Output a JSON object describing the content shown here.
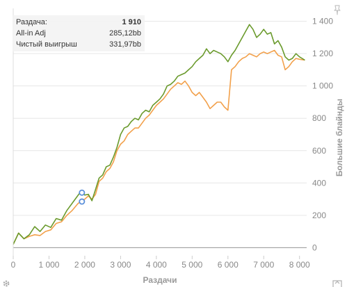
{
  "chart_data": {
    "type": "line",
    "xlabel": "Раздачи",
    "ylabel": "Большие блайнды",
    "xlim": [
      0,
      8200
    ],
    "ylim": [
      -50,
      1480
    ],
    "x_ticks": [
      0,
      1000,
      2000,
      3000,
      4000,
      5000,
      6000,
      7000,
      8000
    ],
    "x_tick_labels": [
      "0",
      "1 000",
      "2 000",
      "3 000",
      "4 000",
      "5 000",
      "6 000",
      "7 000",
      "8 000"
    ],
    "y_ticks": [
      0,
      200,
      400,
      600,
      800,
      1000,
      1200,
      1400
    ],
    "y_tick_labels": [
      "0",
      "200",
      "400",
      "600",
      "800",
      "1 000",
      "1 200",
      "1 400"
    ],
    "y_axis_side": "right",
    "grid": "horizontal",
    "series": [
      {
        "key": "net_won",
        "color": "#6a9a2c",
        "points": [
          [
            0,
            20
          ],
          [
            150,
            90
          ],
          [
            300,
            55
          ],
          [
            450,
            80
          ],
          [
            600,
            130
          ],
          [
            750,
            100
          ],
          [
            900,
            140
          ],
          [
            1050,
            125
          ],
          [
            1200,
            180
          ],
          [
            1350,
            170
          ],
          [
            1500,
            230
          ],
          [
            1650,
            275
          ],
          [
            1800,
            320
          ],
          [
            1900,
            350
          ],
          [
            2000,
            325
          ],
          [
            2100,
            330
          ],
          [
            2200,
            290
          ],
          [
            2300,
            360
          ],
          [
            2400,
            430
          ],
          [
            2500,
            450
          ],
          [
            2600,
            500
          ],
          [
            2700,
            510
          ],
          [
            2800,
            560
          ],
          [
            2900,
            620
          ],
          [
            3000,
            700
          ],
          [
            3100,
            740
          ],
          [
            3200,
            750
          ],
          [
            3300,
            780
          ],
          [
            3400,
            800
          ],
          [
            3500,
            790
          ],
          [
            3600,
            830
          ],
          [
            3700,
            850
          ],
          [
            3800,
            840
          ],
          [
            3900,
            880
          ],
          [
            4000,
            900
          ],
          [
            4100,
            920
          ],
          [
            4200,
            950
          ],
          [
            4300,
            1000
          ],
          [
            4400,
            1010
          ],
          [
            4500,
            1030
          ],
          [
            4600,
            1060
          ],
          [
            4700,
            1070
          ],
          [
            4800,
            1080
          ],
          [
            4900,
            1100
          ],
          [
            5000,
            1120
          ],
          [
            5100,
            1150
          ],
          [
            5200,
            1170
          ],
          [
            5300,
            1190
          ],
          [
            5400,
            1230
          ],
          [
            5500,
            1200
          ],
          [
            5600,
            1220
          ],
          [
            5700,
            1210
          ],
          [
            5800,
            1200
          ],
          [
            5900,
            1180
          ],
          [
            6000,
            1150
          ],
          [
            6100,
            1190
          ],
          [
            6200,
            1220
          ],
          [
            6300,
            1260
          ],
          [
            6400,
            1300
          ],
          [
            6500,
            1340
          ],
          [
            6600,
            1380
          ],
          [
            6700,
            1350
          ],
          [
            6800,
            1300
          ],
          [
            6900,
            1320
          ],
          [
            7000,
            1350
          ],
          [
            7100,
            1320
          ],
          [
            7200,
            1330
          ],
          [
            7300,
            1260
          ],
          [
            7400,
            1280
          ],
          [
            7500,
            1240
          ],
          [
            7600,
            1180
          ],
          [
            7700,
            1160
          ],
          [
            7800,
            1170
          ],
          [
            7900,
            1200
          ],
          [
            8000,
            1180
          ],
          [
            8150,
            1160
          ]
        ]
      },
      {
        "key": "all_in_adj",
        "color": "#f2a04a",
        "points": [
          [
            0,
            20
          ],
          [
            150,
            90
          ],
          [
            300,
            55
          ],
          [
            450,
            70
          ],
          [
            600,
            80
          ],
          [
            750,
            75
          ],
          [
            900,
            100
          ],
          [
            1050,
            110
          ],
          [
            1200,
            150
          ],
          [
            1350,
            160
          ],
          [
            1500,
            200
          ],
          [
            1650,
            230
          ],
          [
            1800,
            270
          ],
          [
            1900,
            290
          ],
          [
            2000,
            300
          ],
          [
            2100,
            320
          ],
          [
            2200,
            300
          ],
          [
            2300,
            330
          ],
          [
            2400,
            410
          ],
          [
            2500,
            430
          ],
          [
            2600,
            470
          ],
          [
            2700,
            490
          ],
          [
            2800,
            530
          ],
          [
            2900,
            600
          ],
          [
            3000,
            640
          ],
          [
            3100,
            660
          ],
          [
            3200,
            700
          ],
          [
            3300,
            720
          ],
          [
            3400,
            740
          ],
          [
            3500,
            740
          ],
          [
            3600,
            770
          ],
          [
            3700,
            800
          ],
          [
            3800,
            820
          ],
          [
            3900,
            850
          ],
          [
            4000,
            880
          ],
          [
            4100,
            900
          ],
          [
            4200,
            920
          ],
          [
            4300,
            950
          ],
          [
            4400,
            980
          ],
          [
            4500,
            1000
          ],
          [
            4600,
            1020
          ],
          [
            4700,
            1010
          ],
          [
            4800,
            1030
          ],
          [
            4900,
            1000
          ],
          [
            5000,
            960
          ],
          [
            5100,
            940
          ],
          [
            5200,
            960
          ],
          [
            5300,
            930
          ],
          [
            5400,
            900
          ],
          [
            5500,
            860
          ],
          [
            5600,
            880
          ],
          [
            5700,
            900
          ],
          [
            5800,
            900
          ],
          [
            5900,
            870
          ],
          [
            6000,
            850
          ],
          [
            6100,
            1100
          ],
          [
            6200,
            1120
          ],
          [
            6300,
            1150
          ],
          [
            6400,
            1170
          ],
          [
            6500,
            1180
          ],
          [
            6600,
            1200
          ],
          [
            6700,
            1190
          ],
          [
            6800,
            1180
          ],
          [
            6900,
            1200
          ],
          [
            7000,
            1210
          ],
          [
            7100,
            1200
          ],
          [
            7200,
            1210
          ],
          [
            7300,
            1220
          ],
          [
            7400,
            1190
          ],
          [
            7500,
            1180
          ],
          [
            7600,
            1100
          ],
          [
            7700,
            1120
          ],
          [
            7800,
            1150
          ],
          [
            7900,
            1170
          ],
          [
            8000,
            1165
          ],
          [
            8150,
            1160
          ]
        ]
      }
    ],
    "markers": [
      {
        "x": 1920,
        "y": 340,
        "color": "#5b8fd9"
      },
      {
        "x": 1920,
        "y": 285,
        "color": "#5b8fd9"
      }
    ]
  },
  "info_box": {
    "rows": [
      {
        "label": "Раздача:",
        "value": "1 910",
        "bold": true
      },
      {
        "label": "All-in Adj",
        "value": "285,12bb",
        "bold": false
      },
      {
        "label": "Чистый выигрыш",
        "value": "331,97bb",
        "bold": false
      }
    ]
  },
  "icons": {
    "top_right": "pin-icon",
    "bottom_left": "gear-icon",
    "bottom_right": "export-icon"
  }
}
